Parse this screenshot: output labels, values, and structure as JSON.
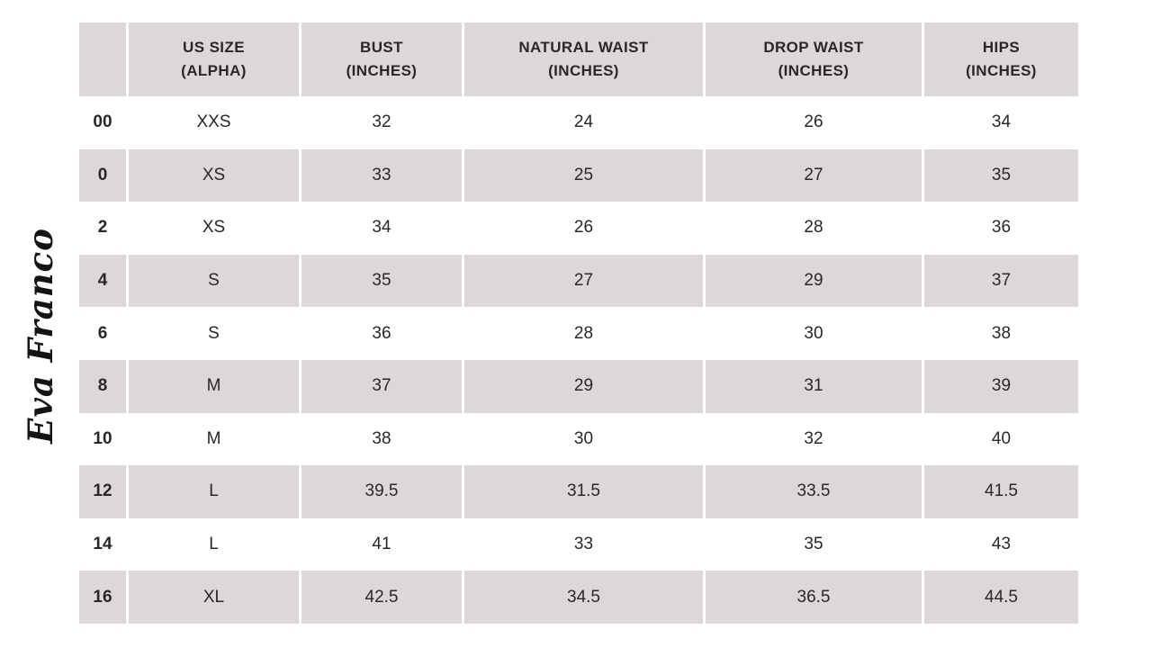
{
  "brand": {
    "logo_text": "Eva Franco"
  },
  "colors": {
    "background": "#ffffff",
    "row_alt": "#dcd8d7",
    "text": "#2a2728",
    "logo": "#161314"
  },
  "chart_data": {
    "type": "table",
    "title": "Eva Franco size chart",
    "columns": [
      {
        "key": "us_size",
        "line1": "",
        "line2": ""
      },
      {
        "key": "alpha",
        "line1": "US SIZE",
        "line2": "(ALPHA)"
      },
      {
        "key": "bust",
        "line1": "BUST",
        "line2": "(INCHES)"
      },
      {
        "key": "natural_waist",
        "line1": "NATURAL WAIST",
        "line2": "(INCHES)"
      },
      {
        "key": "drop_waist",
        "line1": "DROP WAIST",
        "line2": "(INCHES)"
      },
      {
        "key": "hips",
        "line1": "HIPS",
        "line2": "(INCHES)"
      }
    ],
    "rows": [
      [
        "00",
        "XXS",
        "32",
        "24",
        "26",
        "34"
      ],
      [
        "0",
        "XS",
        "33",
        "25",
        "27",
        "35"
      ],
      [
        "2",
        "XS",
        "34",
        "26",
        "28",
        "36"
      ],
      [
        "4",
        "S",
        "35",
        "27",
        "29",
        "37"
      ],
      [
        "6",
        "S",
        "36",
        "28",
        "30",
        "38"
      ],
      [
        "8",
        "M",
        "37",
        "29",
        "31",
        "39"
      ],
      [
        "10",
        "M",
        "38",
        "30",
        "32",
        "40"
      ],
      [
        "12",
        "L",
        "39.5",
        "31.5",
        "33.5",
        "41.5"
      ],
      [
        "14",
        "L",
        "41",
        "33",
        "35",
        "43"
      ],
      [
        "16",
        "XL",
        "42.5",
        "34.5",
        "36.5",
        "44.5"
      ]
    ]
  }
}
